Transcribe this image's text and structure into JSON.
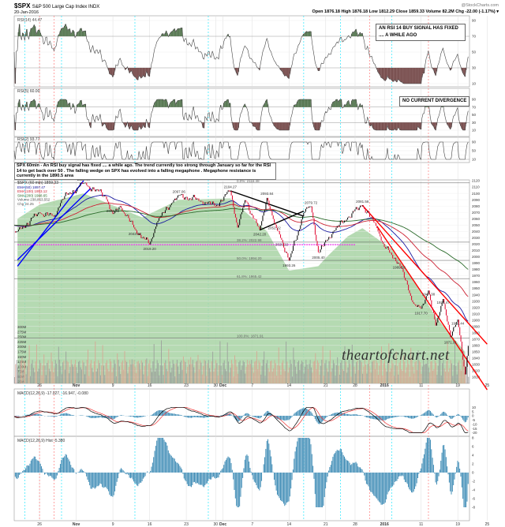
{
  "header": {
    "symbol": "$SPX",
    "name": "S&P 500 Large Cap Index INDX",
    "date": "20-Jan-2016",
    "ohlc": "Open 1876.18  High 1876.18  Low 1812.29  Close 1859.33  Volume 82.2M  Chg -22.00 (-1.17%) ▾",
    "brand": "@StockCharts.com"
  },
  "annotations": {
    "note": "SPX 60min - An RSI buy signal has fixed .... a while ago. The trend currently too strong through January so far for the RSI 14 to get back over 50 . The falling wedge on SPX has evolved into a falling megaphone . Megaphone resistance is currently in the 1890.5 area",
    "rsi14_box": "AN RSI 14 BUY SIGNAL HAS FIXED .... A WHILE AGO",
    "rsi5_box": "NO CURRENT DIVERGENCE",
    "watermark": "theartofchart.net"
  },
  "chart_data": {
    "type": "line",
    "panels": [
      {
        "name": "rsi14",
        "label": "RSI(14) 44.47",
        "ylim": [
          10,
          90
        ],
        "ticks": [
          "90",
          "70",
          "50",
          "30",
          "10"
        ]
      },
      {
        "name": "rsi5",
        "label": "RSI(5) 60.00",
        "ylim": [
          10,
          90
        ],
        "ticks": [
          "90",
          "70",
          "50",
          "30",
          "10"
        ]
      },
      {
        "name": "rsi2",
        "label": "RSI(2) 93.77",
        "ylim": [
          10,
          90
        ],
        "ticks": [
          "90",
          "50",
          "10"
        ]
      },
      {
        "name": "price",
        "label": "$SPX (60 min) 1859.33",
        "legend": [
          "EMA(50) 1897.47",
          "EMA(100) 1953.12",
          "SMA(200) 1988.65",
          "Volume 238,853,552",
          "Chg 24.25"
        ],
        "ylim": [
          1810,
          2120
        ],
        "volume_ticks": [
          "300M",
          "275M",
          "250M",
          "225M",
          "200M",
          "175M",
          "150M",
          "125M",
          "100M",
          "75M",
          "50M",
          "25M"
        ]
      },
      {
        "name": "macd",
        "label": "MACD(12,26,9) -17.027, -16.947, -0.080",
        "ylim": [
          -20,
          10
        ],
        "ticks": [
          "10",
          "5",
          "0",
          "-5",
          "-10",
          "-15",
          "-20"
        ]
      },
      {
        "name": "macd_hist",
        "label": "MACD(12,26,9) Hist -5.380",
        "ylim": [
          -8,
          8
        ],
        "ticks": [
          "8",
          "6",
          "4",
          "2",
          "0",
          "-2",
          "-4",
          "-6",
          "-8"
        ]
      }
    ],
    "x_ticks": [
      {
        "date": "2015-10-26",
        "label": "26"
      },
      {
        "date": "2015-11-02",
        "label": "Nov"
      },
      {
        "date": "2015-11-09",
        "label": "9"
      },
      {
        "date": "2015-11-16",
        "label": "16"
      },
      {
        "date": "2015-11-23",
        "label": "23"
      },
      {
        "date": "2015-11-30",
        "label": "30"
      },
      {
        "date": "2015-12-01",
        "label": "Dec"
      },
      {
        "date": "2015-12-07",
        "label": "7"
      },
      {
        "date": "2015-12-14",
        "label": "14"
      },
      {
        "date": "2015-12-21",
        "label": "21"
      },
      {
        "date": "2015-12-28",
        "label": "28"
      },
      {
        "date": "2016-01-04",
        "label": "2016"
      },
      {
        "date": "2016-01-11",
        "label": "11"
      },
      {
        "date": "2016-01-19",
        "label": "19"
      },
      {
        "date": "2016-01-25",
        "label": "25"
      }
    ],
    "price_pivots": [
      [
        "2015-10-21",
        2040
      ],
      [
        "2015-10-26",
        2070
      ],
      [
        "2015-10-28",
        2063
      ],
      [
        "2015-10-29",
        2090
      ],
      [
        "2015-11-03",
        2116.48
      ],
      [
        "2015-11-06",
        2095
      ],
      [
        "2015-11-09",
        2066.66
      ],
      [
        "2015-11-10",
        2080
      ],
      [
        "2015-11-12",
        2043.04
      ],
      [
        "2015-11-16",
        2019.2
      ],
      [
        "2015-11-17",
        2055
      ],
      [
        "2015-11-19",
        2085
      ],
      [
        "2015-11-20",
        2097.06
      ],
      [
        "2015-11-25",
        2088
      ],
      [
        "2015-11-30",
        2080
      ],
      [
        "2015-12-02",
        2104.27
      ],
      [
        "2015-12-03",
        2045
      ],
      [
        "2015-12-04",
        2090
      ],
      [
        "2015-12-08",
        2042.2
      ],
      [
        "2015-12-09",
        2093.84
      ],
      [
        "2015-12-10",
        2052.22
      ],
      [
        "2015-12-11",
        2026.22
      ],
      [
        "2015-12-14",
        1993.26
      ],
      [
        "2015-12-16",
        2070
      ],
      [
        "2015-12-17",
        2079.72
      ],
      [
        "2015-12-18",
        2005.4
      ],
      [
        "2015-12-22",
        2040
      ],
      [
        "2015-12-24",
        2062
      ],
      [
        "2015-12-29",
        2081.56
      ],
      [
        "2015-12-31",
        2045
      ],
      [
        "2016-01-04",
        2015
      ],
      [
        "2016-01-06",
        1989.68
      ],
      [
        "2016-01-08",
        1925
      ],
      [
        "2016-01-11",
        1917.7
      ],
      [
        "2016-01-12",
        1947.38
      ],
      [
        "2016-01-13",
        1890
      ],
      [
        "2016-01-14",
        1934.47
      ],
      [
        "2016-01-15",
        1871.91
      ],
      [
        "2016-01-19",
        1901.44
      ],
      [
        "2016-01-20",
        1812.29
      ],
      [
        "2016-01-20T15",
        1859.33
      ]
    ],
    "pivot_labels": [
      "2116.48",
      "2066.66",
      "2043.04",
      "2019.20",
      "2097.06",
      "2104.27",
      "2042.20",
      "2093.84",
      "2052.22",
      "2026.22",
      "1993.26",
      "2079.72",
      "2005.40",
      "2081.56",
      "1989.68",
      "1917.70",
      "1947.38",
      "1934.47",
      "1871.91",
      "1901.44"
    ],
    "overlay_area": [
      [
        "2015-10-21",
        2060
      ],
      [
        "2015-10-26",
        2082
      ],
      [
        "2015-11-03",
        2100
      ],
      [
        "2015-11-13",
        2062
      ],
      [
        "2015-11-20",
        2090
      ],
      [
        "2015-12-02",
        2092
      ],
      [
        "2015-12-09",
        2040
      ],
      [
        "2015-12-14",
        1978
      ],
      [
        "2015-12-18",
        1985
      ],
      [
        "2015-12-21",
        1998
      ],
      [
        "2015-12-24",
        2032
      ],
      [
        "2015-12-29",
        2045
      ],
      [
        "2016-01-05",
        2012
      ],
      [
        "2016-01-08",
        1962
      ],
      [
        "2016-01-13",
        1905
      ],
      [
        "2016-01-20",
        1850
      ]
    ],
    "fib_levels": [
      {
        "label": "0.0%: 2116.48",
        "value": 2116.48
      },
      {
        "label": "38.2%: 2022.98",
        "value": 2022.98
      },
      {
        "label": "50.0%: 1994.20",
        "value": 1994.2
      },
      {
        "label": "61.8%: 1965.42",
        "value": 1965.42
      },
      {
        "label": "100.0%: 1871.91",
        "value": 1871.91
      }
    ],
    "trendlines": [
      {
        "color": "#ff0000",
        "from": [
          "2015-12-29",
          2081
        ],
        "to": [
          "2016-01-25",
          1862
        ]
      },
      {
        "color": "#ff0000",
        "from": [
          "2015-12-31",
          2048
        ],
        "to": [
          "2016-01-25",
          1790
        ]
      },
      {
        "color": "#0000ff",
        "from": [
          "2015-10-21",
          1985
        ],
        "to": [
          "2015-11-03",
          2120
        ]
      },
      {
        "color": "#0000ff",
        "from": [
          "2015-10-21",
          1995
        ],
        "to": [
          "2015-11-04",
          2108
        ]
      },
      {
        "color": "#000000",
        "from": [
          "2015-12-02",
          2104
        ],
        "to": [
          "2015-12-16",
          2064
        ]
      },
      {
        "color": "#000000",
        "from": [
          "2015-12-08",
          2042
        ],
        "to": [
          "2015-12-16",
          2072
        ]
      },
      {
        "color": "#ee00ee",
        "from": [
          "2015-10-21",
          2019
        ],
        "to": [
          "2015-12-28",
          2019
        ]
      }
    ],
    "colors": {
      "up": "#000000",
      "down": "#e0002a",
      "ema50": "#1a1aa0",
      "ema100": "#cc2233",
      "sma200": "#2a6a2a",
      "area": "#a8d4a4",
      "hist": "#3d8bb5"
    }
  }
}
